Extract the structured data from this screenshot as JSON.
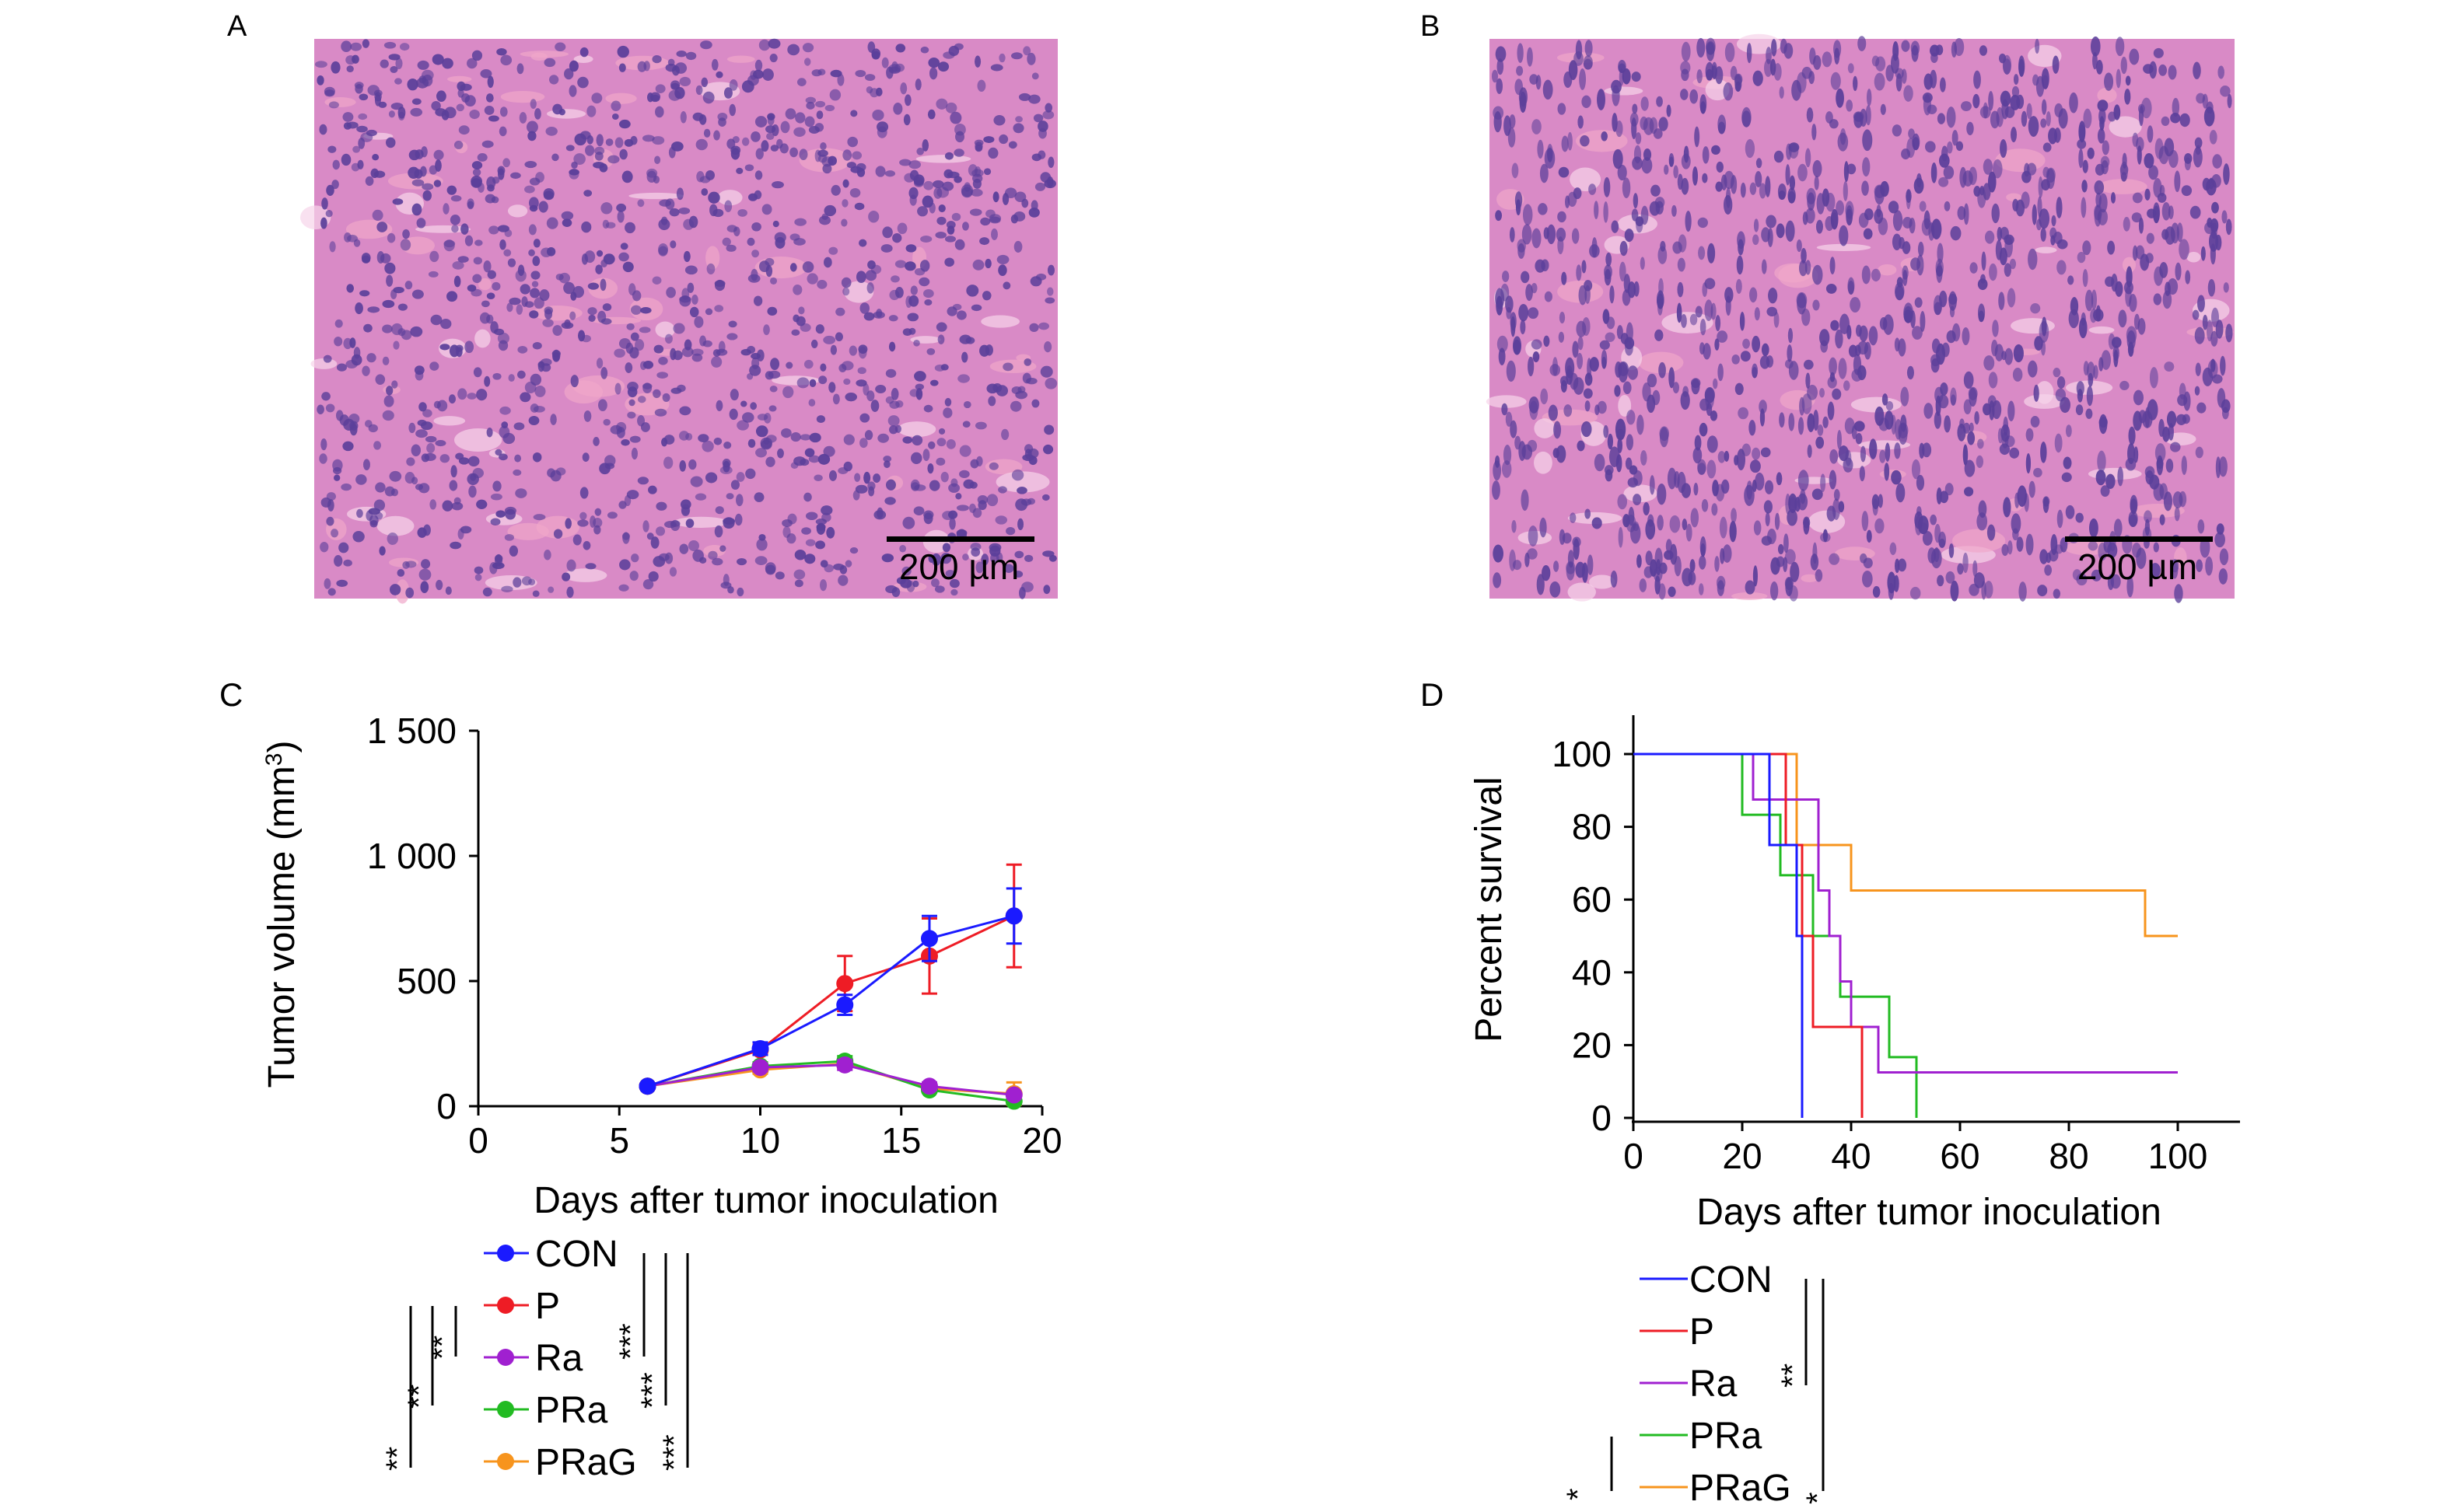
{
  "colors": {
    "CON": "#1a1aff",
    "P": "#ee1c25",
    "Ra": "#a020d0",
    "PRa": "#22bb22",
    "PRaG": "#f7941d",
    "tissue_bg": "#d98ac6",
    "nucleus": "#5b3f9a",
    "stroma": "#f0a7c9"
  },
  "panels": {
    "A": {
      "label": "A",
      "scalebar": "200 µm"
    },
    "B": {
      "label": "B",
      "scalebar": "200 µm"
    },
    "C": {
      "label": "C"
    },
    "D": {
      "label": "D"
    }
  },
  "chart_data": [
    {
      "panel": "C",
      "type": "line",
      "xlabel": "Days after tumor inoculation",
      "ylabel": "Tumor volume (mm",
      "ylabel_sup": "3",
      "ylabel_close": ")",
      "xlim": [
        0,
        20
      ],
      "ylim": [
        0,
        1500
      ],
      "xticks": [
        "0",
        "5",
        "10",
        "15",
        "20"
      ],
      "xtick_values": [
        0,
        5,
        10,
        15,
        20
      ],
      "yticks": [
        "0",
        "500",
        "1 000",
        "1 500"
      ],
      "ytick_values": [
        0,
        500,
        1000,
        1500
      ],
      "x": [
        6,
        10,
        13,
        16,
        19
      ],
      "series": [
        {
          "name": "CON",
          "values": [
            80,
            230,
            405,
            670,
            760
          ],
          "err": [
            10,
            25,
            40,
            90,
            110
          ]
        },
        {
          "name": "P",
          "values": [
            80,
            225,
            490,
            600,
            760
          ],
          "err": [
            10,
            20,
            110,
            150,
            205
          ]
        },
        {
          "name": "Ra",
          "values": [
            80,
            155,
            165,
            80,
            45
          ],
          "err": [
            10,
            15,
            20,
            15,
            10
          ]
        },
        {
          "name": "PRa",
          "values": [
            80,
            160,
            180,
            65,
            20
          ],
          "err": [
            10,
            15,
            20,
            12,
            8
          ]
        },
        {
          "name": "PRaG",
          "values": [
            80,
            145,
            170,
            70,
            50
          ],
          "err": [
            10,
            15,
            20,
            12,
            45
          ]
        }
      ],
      "significance": [
        "**",
        "**",
        "**",
        "***",
        "***",
        "***"
      ]
    },
    {
      "panel": "D",
      "type": "line",
      "step": true,
      "xlabel": "Days after tumor inoculation",
      "ylabel": "Percent survival",
      "xlim": [
        0,
        110
      ],
      "ylim": [
        0,
        110
      ],
      "xticks": [
        "0",
        "20",
        "40",
        "60",
        "80",
        "100"
      ],
      "xtick_values": [
        0,
        20,
        40,
        60,
        80,
        100
      ],
      "yticks": [
        "0",
        "20",
        "40",
        "60",
        "80",
        "100"
      ],
      "ytick_values": [
        0,
        20,
        40,
        60,
        80,
        100
      ],
      "series": [
        {
          "name": "CON",
          "x": [
            0,
            25,
            30,
            31,
            31
          ],
          "y": [
            100,
            75,
            50,
            0,
            0
          ]
        },
        {
          "name": "P",
          "x": [
            0,
            28,
            31,
            33,
            42,
            42
          ],
          "y": [
            100,
            75,
            50,
            25,
            0,
            0
          ]
        },
        {
          "name": "Ra",
          "x": [
            0,
            22,
            25,
            34,
            36,
            38,
            40,
            45,
            100
          ],
          "y": [
            100,
            87.5,
            87.5,
            62.5,
            50,
            37.5,
            25,
            12.5,
            12.5
          ]
        },
        {
          "name": "PRa",
          "x": [
            0,
            20,
            27,
            29,
            33,
            38,
            40,
            47,
            50,
            52
          ],
          "y": [
            100,
            83.3,
            66.7,
            66.7,
            50,
            33.3,
            33.3,
            16.7,
            16.7,
            0
          ]
        },
        {
          "name": "PRaG",
          "x": [
            0,
            27,
            30,
            35,
            40,
            94,
            100
          ],
          "y": [
            100,
            100,
            75,
            75,
            62.5,
            50,
            50
          ]
        }
      ],
      "significance": [
        "**",
        "*",
        "*"
      ]
    }
  ]
}
